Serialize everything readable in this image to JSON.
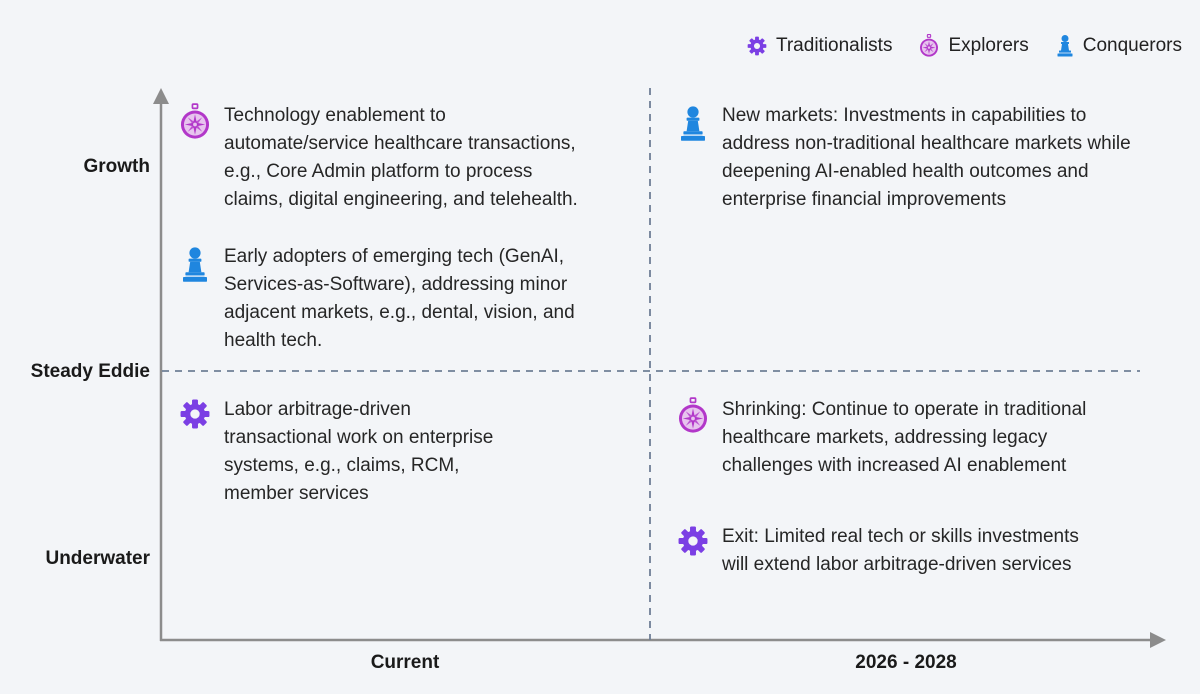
{
  "legend": {
    "traditionalists": {
      "label": "Traditionalists",
      "icon": "gear-icon",
      "color": "#7b3fe4"
    },
    "explorers": {
      "label": "Explorers",
      "icon": "compass-icon",
      "color": "#b237c9"
    },
    "conquerors": {
      "label": "Conquerors",
      "icon": "pawn-icon",
      "color": "#1f86df"
    }
  },
  "axes": {
    "y_labels": {
      "top": "Growth",
      "middle": "Steady Eddie",
      "bottom": "Underwater"
    },
    "x_labels": {
      "left": "Current",
      "right": "2026 - 2028"
    }
  },
  "quadrants": {
    "current_growth": [
      {
        "type": "explorers",
        "icon": "compass-icon",
        "text": "Technology enablement to\nautomate/service healthcare transactions,\ne.g., Core Admin platform to process\nclaims, digital engineering, and telehealth."
      },
      {
        "type": "conquerors",
        "icon": "pawn-icon",
        "text": "Early adopters of emerging tech (GenAI,\nServices-as-Software), addressing minor\nadjacent markets, e.g., dental, vision, and\nhealth tech."
      }
    ],
    "current_underwater": [
      {
        "type": "traditionalists",
        "icon": "gear-icon",
        "text": "Labor arbitrage-driven\ntransactional work on enterprise\nsystems, e.g., claims, RCM,\nmember services"
      }
    ],
    "future_growth": [
      {
        "type": "conquerors",
        "icon": "pawn-icon",
        "text": "New markets: Investments in capabilities to\naddress non-traditional healthcare markets while\ndeepening AI-enabled health outcomes and\nenterprise financial improvements"
      }
    ],
    "future_underwater": [
      {
        "type": "explorers",
        "icon": "compass-icon",
        "text": "Shrinking: Continue to operate in traditional\nhealthcare markets, addressing legacy\nchallenges with increased AI enablement"
      },
      {
        "type": "traditionalists",
        "icon": "gear-icon",
        "text": "Exit: Limited real tech or skills investments\nwill extend labor arbitrage-driven services"
      }
    ]
  }
}
